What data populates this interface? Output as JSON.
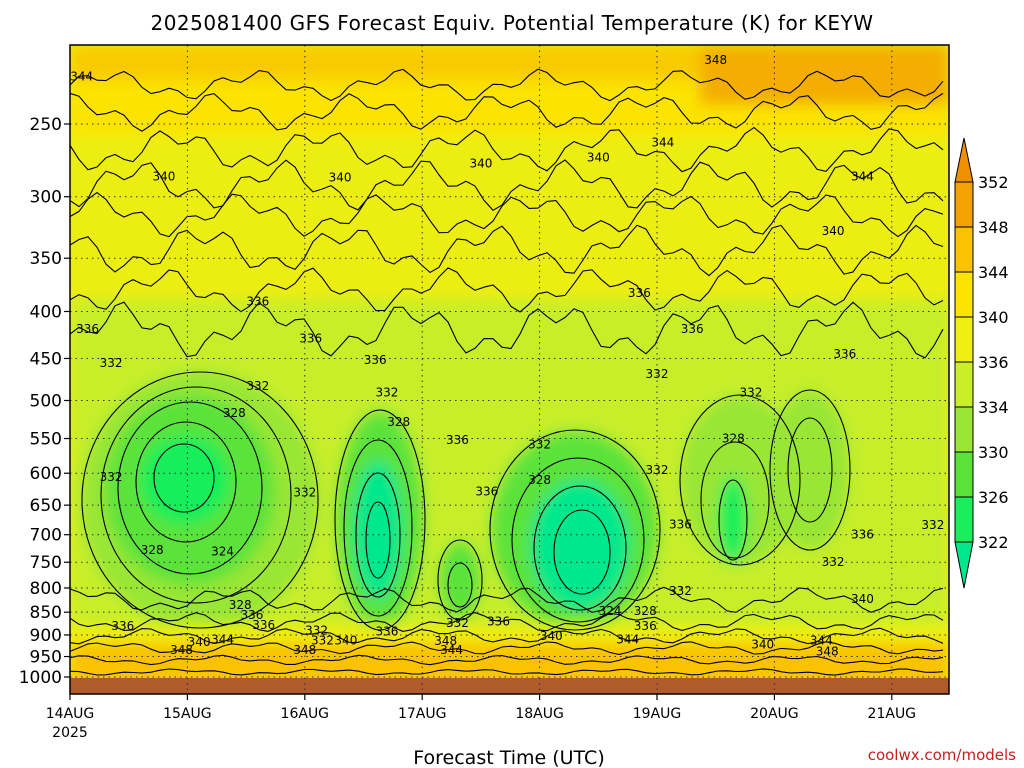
{
  "chart_data": {
    "type": "heatmap",
    "title": "2025081400 GFS Forecast Equiv. Potential Temperature (K) for KEYW",
    "xlabel": "Forecast Time (UTC)",
    "ylabel": "",
    "credit": "coolwx.com/models",
    "y_scale": "log",
    "y_inverted": true,
    "ylim": [
      1030,
      200
    ],
    "y_ticks": [
      250,
      300,
      350,
      400,
      450,
      500,
      550,
      600,
      650,
      700,
      750,
      800,
      850,
      900,
      950,
      1000
    ],
    "x_ticks": [
      {
        "day": 0,
        "label": "14AUG",
        "sub": "2025"
      },
      {
        "day": 1,
        "label": "15AUG",
        "sub": ""
      },
      {
        "day": 2,
        "label": "16AUG",
        "sub": ""
      },
      {
        "day": 3,
        "label": "17AUG",
        "sub": ""
      },
      {
        "day": 4,
        "label": "18AUG",
        "sub": ""
      },
      {
        "day": 5,
        "label": "19AUG",
        "sub": ""
      },
      {
        "day": 6,
        "label": "20AUG",
        "sub": ""
      },
      {
        "day": 7,
        "label": "21AUG",
        "sub": ""
      }
    ],
    "xlim_days": [
      0,
      7.5
    ],
    "grid": true,
    "colorbar": {
      "placement": "right",
      "levels": [
        322,
        326,
        330,
        334,
        336,
        340,
        344,
        348,
        352
      ],
      "colors": [
        "#00e88c",
        "#19ef5a",
        "#5be33a",
        "#99e634",
        "#cbee2b",
        "#eeee10",
        "#fce300",
        "#fac200",
        "#f4a200",
        "#ee9000"
      ]
    },
    "contour_labels": [
      {
        "day": 0.1,
        "p": 222,
        "value": "344"
      },
      {
        "day": 0.8,
        "p": 285,
        "value": "340"
      },
      {
        "day": 2.3,
        "p": 286,
        "value": "340"
      },
      {
        "day": 3.5,
        "p": 276,
        "value": "340"
      },
      {
        "day": 4.5,
        "p": 272,
        "value": "340"
      },
      {
        "day": 5.05,
        "p": 262,
        "value": "344"
      },
      {
        "day": 5.5,
        "p": 213,
        "value": "348"
      },
      {
        "day": 6.5,
        "p": 327,
        "value": "340"
      },
      {
        "day": 6.75,
        "p": 285,
        "value": "344"
      },
      {
        "day": 1.6,
        "p": 390,
        "value": "336"
      },
      {
        "day": 0.15,
        "p": 418,
        "value": "336"
      },
      {
        "day": 2.05,
        "p": 428,
        "value": "336"
      },
      {
        "day": 2.6,
        "p": 452,
        "value": "336"
      },
      {
        "day": 4.85,
        "p": 382,
        "value": "336"
      },
      {
        "day": 5.3,
        "p": 418,
        "value": "336"
      },
      {
        "day": 6.6,
        "p": 445,
        "value": "336"
      },
      {
        "day": 0.35,
        "p": 455,
        "value": "332"
      },
      {
        "day": 1.6,
        "p": 482,
        "value": "332"
      },
      {
        "day": 2.7,
        "p": 490,
        "value": "332"
      },
      {
        "day": 5.0,
        "p": 468,
        "value": "332"
      },
      {
        "day": 5.8,
        "p": 490,
        "value": "332"
      },
      {
        "day": 1.4,
        "p": 516,
        "value": "328"
      },
      {
        "day": 2.8,
        "p": 528,
        "value": "328"
      },
      {
        "day": 3.3,
        "p": 552,
        "value": "336"
      },
      {
        "day": 4.0,
        "p": 558,
        "value": "332"
      },
      {
        "day": 5.65,
        "p": 550,
        "value": "328"
      },
      {
        "day": 0.35,
        "p": 606,
        "value": "332"
      },
      {
        "day": 5.0,
        "p": 595,
        "value": "332"
      },
      {
        "day": 4.0,
        "p": 610,
        "value": "328"
      },
      {
        "day": 2.0,
        "p": 630,
        "value": "332"
      },
      {
        "day": 3.55,
        "p": 628,
        "value": "336"
      },
      {
        "day": 5.2,
        "p": 682,
        "value": "336"
      },
      {
        "day": 6.75,
        "p": 700,
        "value": "336"
      },
      {
        "day": 7.35,
        "p": 683,
        "value": "332"
      },
      {
        "day": 0.7,
        "p": 727,
        "value": "328"
      },
      {
        "day": 1.3,
        "p": 730,
        "value": "324"
      },
      {
        "day": 6.5,
        "p": 750,
        "value": "332"
      },
      {
        "day": 5.2,
        "p": 806,
        "value": "332"
      },
      {
        "day": 6.75,
        "p": 822,
        "value": "340"
      },
      {
        "day": 1.45,
        "p": 835,
        "value": "328"
      },
      {
        "day": 1.55,
        "p": 856,
        "value": "336"
      },
      {
        "day": 0.45,
        "p": 880,
        "value": "336"
      },
      {
        "day": 1.65,
        "p": 878,
        "value": "336"
      },
      {
        "day": 2.1,
        "p": 890,
        "value": "332"
      },
      {
        "day": 3.3,
        "p": 873,
        "value": "332"
      },
      {
        "day": 3.65,
        "p": 870,
        "value": "336"
      },
      {
        "day": 4.9,
        "p": 880,
        "value": "336"
      },
      {
        "day": 4.6,
        "p": 848,
        "value": "324"
      },
      {
        "day": 4.9,
        "p": 848,
        "value": "328"
      },
      {
        "day": 1.1,
        "p": 916,
        "value": "340"
      },
      {
        "day": 1.3,
        "p": 910,
        "value": "344"
      },
      {
        "day": 2.15,
        "p": 912,
        "value": "332"
      },
      {
        "day": 2.35,
        "p": 912,
        "value": "340"
      },
      {
        "day": 2.7,
        "p": 892,
        "value": "336"
      },
      {
        "day": 3.2,
        "p": 914,
        "value": "348"
      },
      {
        "day": 4.1,
        "p": 902,
        "value": "340"
      },
      {
        "day": 4.75,
        "p": 910,
        "value": "344"
      },
      {
        "day": 0.95,
        "p": 935,
        "value": "348"
      },
      {
        "day": 2.0,
        "p": 935,
        "value": "348"
      },
      {
        "day": 3.25,
        "p": 935,
        "value": "344"
      },
      {
        "day": 5.9,
        "p": 922,
        "value": "340"
      },
      {
        "day": 6.4,
        "p": 912,
        "value": "344"
      },
      {
        "day": 6.45,
        "p": 938,
        "value": "348"
      }
    ]
  }
}
